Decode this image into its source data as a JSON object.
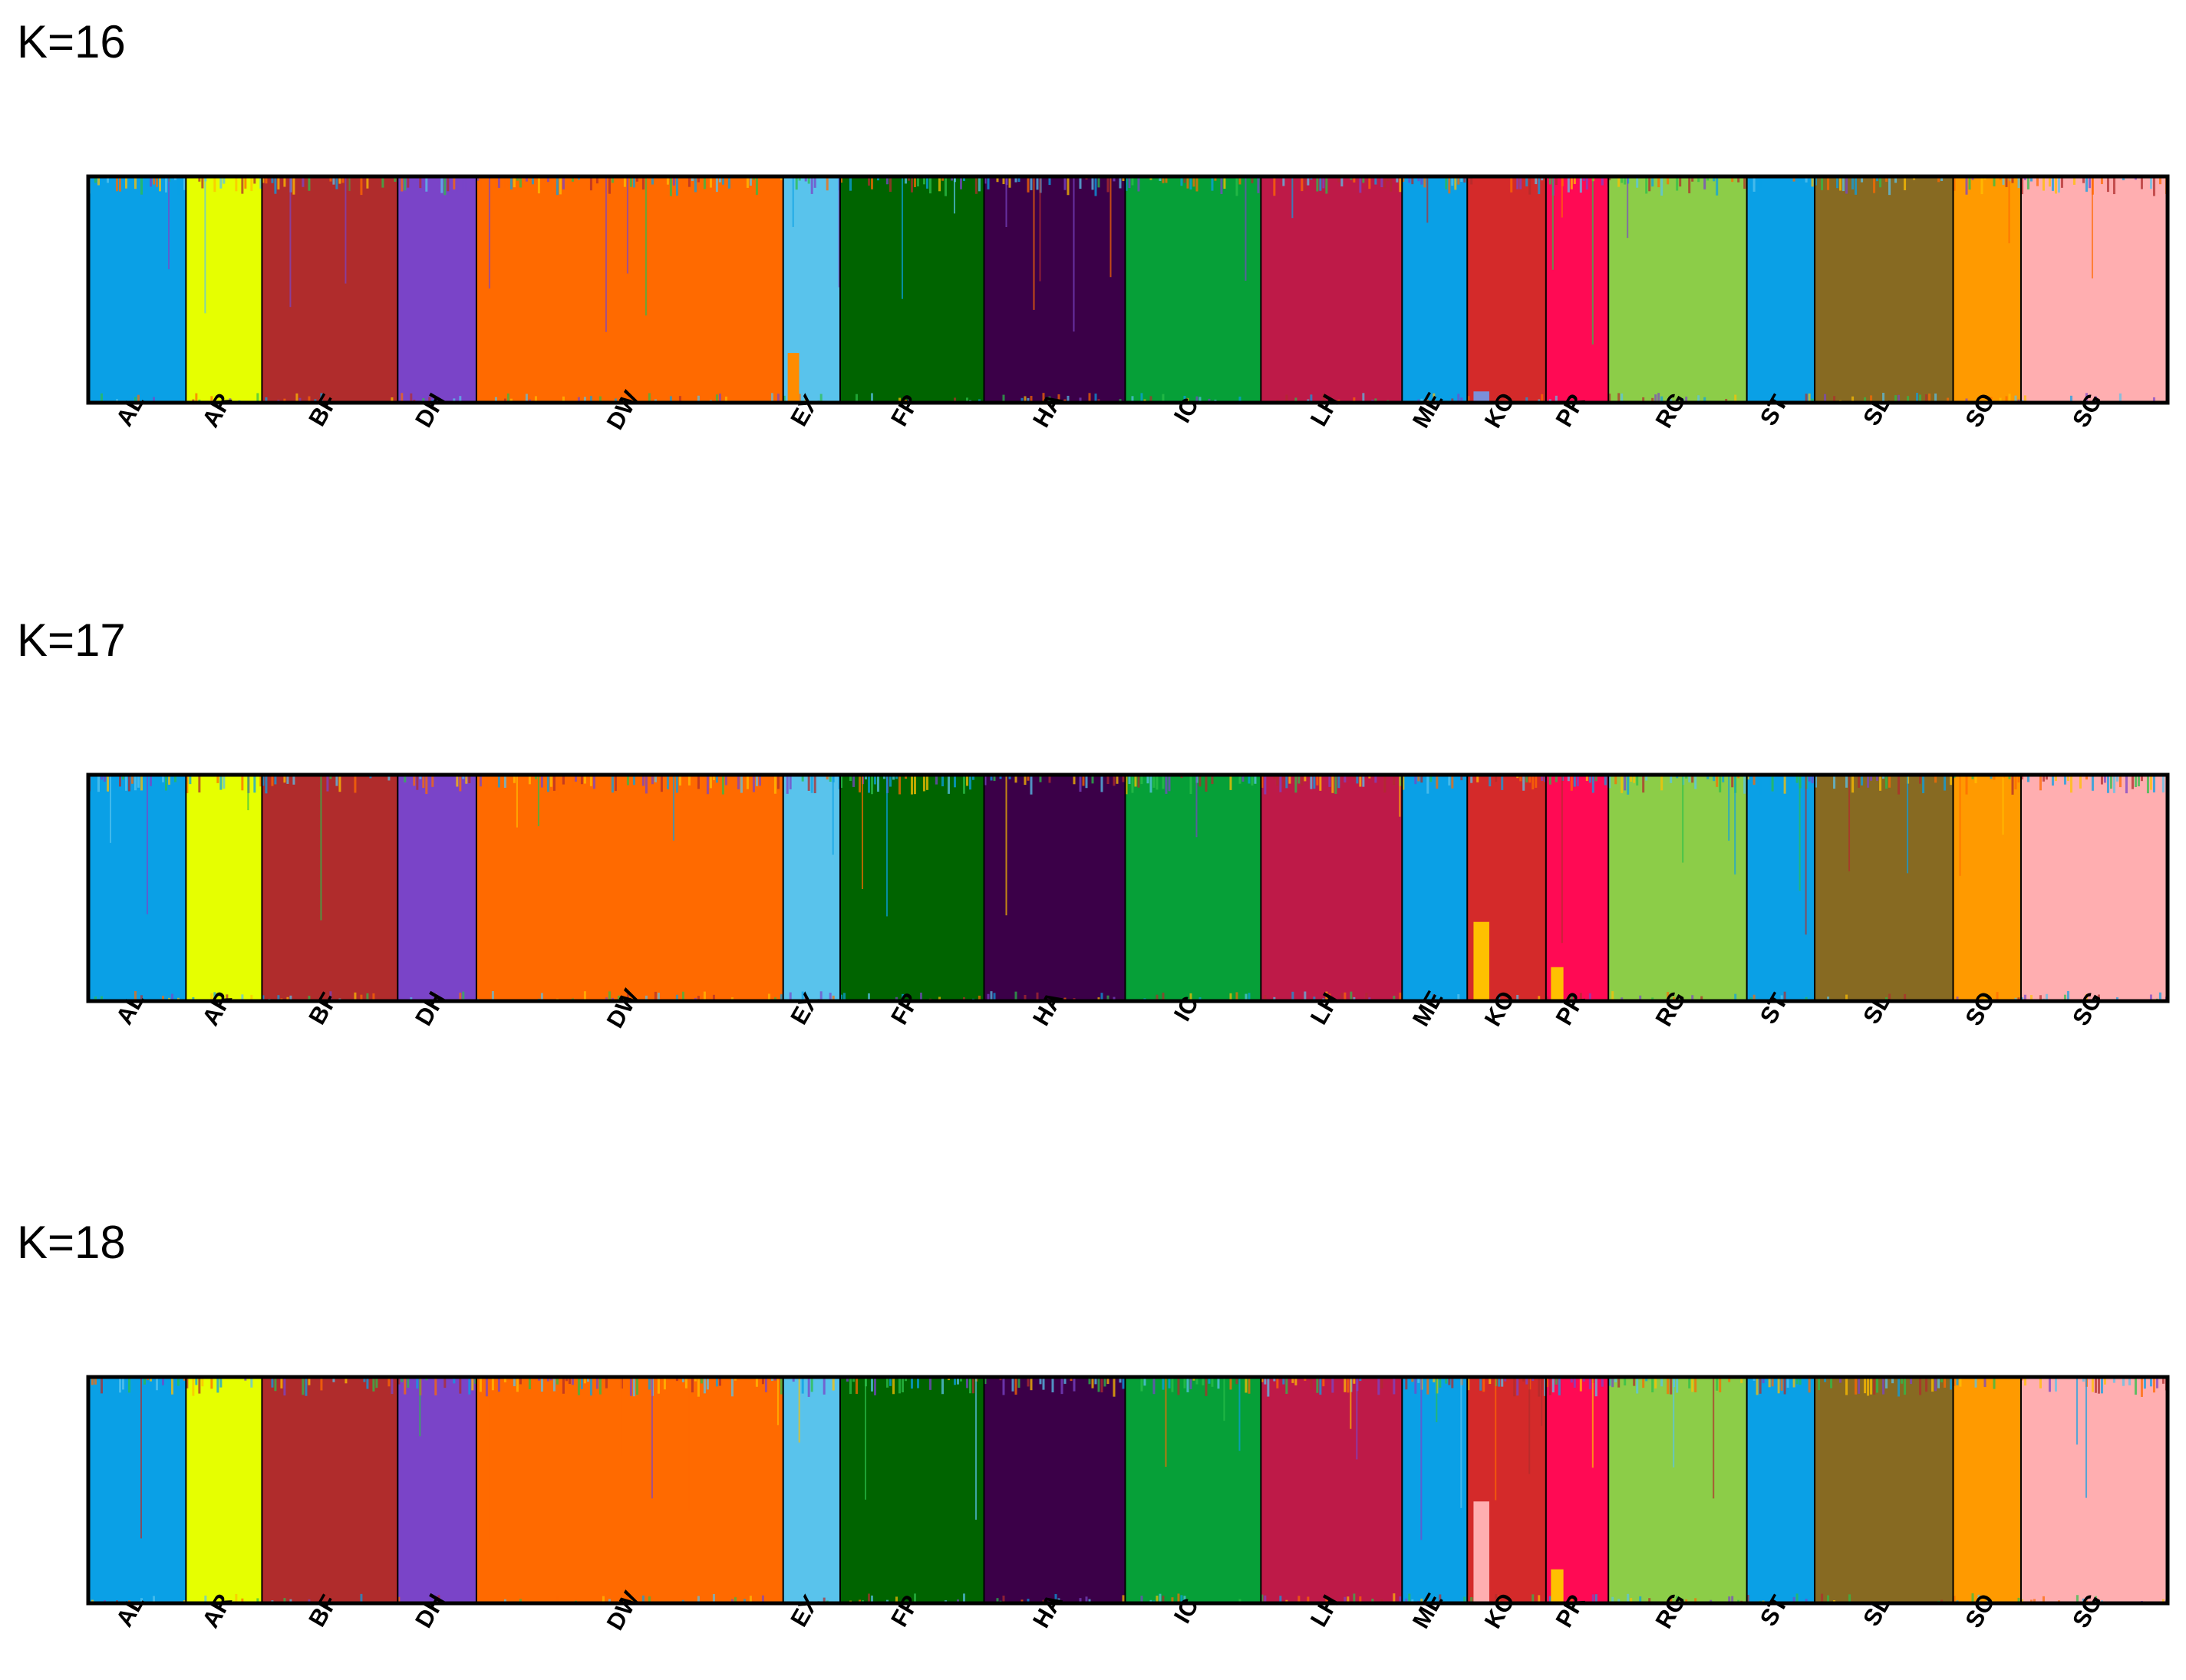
{
  "chart_data": [
    {
      "type": "bar",
      "title": "K=16",
      "stacked": true,
      "ylim": [
        0,
        1
      ],
      "grid": false,
      "categories": [
        "AL",
        "AR",
        "BF",
        "DH",
        "DW",
        "EX",
        "FR",
        "HA",
        "IC",
        "LH",
        "ME",
        "KO",
        "PR",
        "RG",
        "ST",
        "SL",
        "SO",
        "SG"
      ],
      "relative_sample_sizes": [
        36,
        28,
        50,
        29,
        113,
        21,
        53,
        52,
        50,
        52,
        24,
        29,
        23,
        51,
        25,
        51,
        25,
        54
      ],
      "majority_cluster_colors": [
        "#0aa0e6",
        "#e6ff00",
        "#b02c2c",
        "#7a44c8",
        "#ff6a00",
        "#59c3ec",
        "#006400",
        "#3b0048",
        "#06a038",
        "#be1a48",
        "#0aa0e6",
        "#d42a2a",
        "#ff0a54",
        "#8ccd48",
        "#0aa0e6",
        "#876a22",
        "#ff9a00",
        "#ffaeb0"
      ],
      "noted_admixture": [
        {
          "population": "EX",
          "color": "#ff8c00",
          "share": 0.22
        },
        {
          "population": "KO",
          "color": "#7b8fd8",
          "share": 0.05
        }
      ]
    },
    {
      "type": "bar",
      "title": "K=17",
      "stacked": true,
      "ylim": [
        0,
        1
      ],
      "grid": false,
      "categories": [
        "AL",
        "AR",
        "BF",
        "DH",
        "DW",
        "EX",
        "FR",
        "HA",
        "IC",
        "LH",
        "ME",
        "KO",
        "PR",
        "RG",
        "ST",
        "SL",
        "SO",
        "SG"
      ],
      "relative_sample_sizes": [
        36,
        28,
        50,
        29,
        113,
        21,
        53,
        52,
        50,
        52,
        24,
        29,
        23,
        51,
        25,
        51,
        25,
        54
      ],
      "majority_cluster_colors": [
        "#0aa0e6",
        "#e6ff00",
        "#b02c2c",
        "#7a44c8",
        "#ff6a00",
        "#59c3ec",
        "#006400",
        "#3b0048",
        "#06a038",
        "#be1a48",
        "#0aa0e6",
        "#d42a2a",
        "#ff0a54",
        "#8ccd48",
        "#0aa0e6",
        "#876a22",
        "#ff9a00",
        "#ffaeb0"
      ],
      "noted_admixture": [
        {
          "population": "KO",
          "color": "#ffc000",
          "share": 0.35
        },
        {
          "population": "PR",
          "color": "#ffc000",
          "share": 0.15
        }
      ]
    },
    {
      "type": "bar",
      "title": "K=18",
      "stacked": true,
      "ylim": [
        0,
        1
      ],
      "grid": false,
      "categories": [
        "AL",
        "AR",
        "BF",
        "DH",
        "DW",
        "EX",
        "FR",
        "HA",
        "IC",
        "LH",
        "ME",
        "KO",
        "PR",
        "RG",
        "ST",
        "SL",
        "SO",
        "SG"
      ],
      "relative_sample_sizes": [
        36,
        28,
        50,
        29,
        113,
        21,
        53,
        52,
        50,
        52,
        24,
        29,
        23,
        51,
        25,
        51,
        25,
        54
      ],
      "majority_cluster_colors": [
        "#0aa0e6",
        "#e6ff00",
        "#b02c2c",
        "#7a44c8",
        "#ff6a00",
        "#59c3ec",
        "#006400",
        "#3b0048",
        "#06a038",
        "#be1a48",
        "#0aa0e6",
        "#d42a2a",
        "#ff0a54",
        "#8ccd48",
        "#0aa0e6",
        "#876a22",
        "#ff9a00",
        "#ffaeb0"
      ],
      "noted_admixture": [
        {
          "population": "KO",
          "color": "#ffaeb0",
          "share": 0.45
        },
        {
          "population": "PR",
          "color": "#ffc000",
          "share": 0.15
        }
      ]
    }
  ]
}
